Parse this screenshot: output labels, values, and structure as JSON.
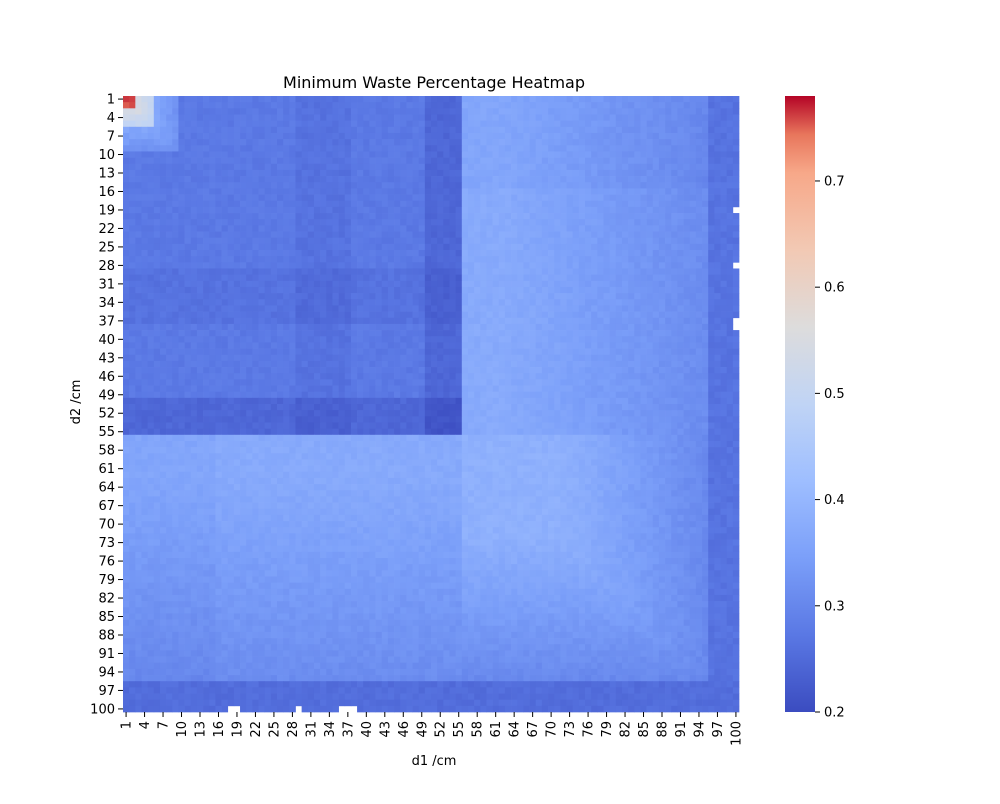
{
  "chart_data": {
    "type": "heatmap",
    "title": "Minimum Waste Percentage Heatmap",
    "xlabel": "d1 /cm",
    "ylabel": "d2 /cm",
    "x_range": [
      1,
      100
    ],
    "y_range": [
      1,
      100
    ],
    "x_tick_labels": [
      "1",
      "4",
      "7",
      "10",
      "13",
      "16",
      "19",
      "22",
      "25",
      "28",
      "31",
      "34",
      "37",
      "40",
      "43",
      "46",
      "49",
      "52",
      "55",
      "58",
      "61",
      "64",
      "67",
      "70",
      "73",
      "76",
      "79",
      "82",
      "85",
      "88",
      "91",
      "94",
      "97",
      "100"
    ],
    "y_tick_labels": [
      "1",
      "4",
      "7",
      "10",
      "13",
      "16",
      "19",
      "22",
      "25",
      "28",
      "31",
      "34",
      "37",
      "40",
      "43",
      "46",
      "49",
      "52",
      "55",
      "58",
      "61",
      "64",
      "67",
      "70",
      "73",
      "76",
      "79",
      "82",
      "85",
      "88",
      "91",
      "94",
      "97",
      "100"
    ],
    "colormap": "coolwarm",
    "colorbar": {
      "min": 0.2,
      "max": 0.78,
      "ticks": [
        "0.2",
        "0.3",
        "0.4",
        "0.5",
        "0.6",
        "0.7"
      ]
    },
    "grid": false,
    "legend": "colorbar-right",
    "missing_cells_d1_d2": [
      [
        18,
        100
      ],
      [
        19,
        100
      ],
      [
        29,
        100
      ],
      [
        36,
        100
      ],
      [
        37,
        100
      ],
      [
        38,
        100
      ],
      [
        100,
        19
      ],
      [
        100,
        28
      ],
      [
        100,
        37
      ],
      [
        100,
        38
      ]
    ],
    "approx_values": [
      {
        "region": "d1 1-2, d2 1-2",
        "value": 0.75
      },
      {
        "region": "d1 1-6, d2 1-6",
        "value": 0.55
      },
      {
        "region": "d1 1-55, d2 1-55",
        "value": 0.27
      },
      {
        "region": "d1 55-100, d2 1-55",
        "value": 0.37
      },
      {
        "region": "d1 1-55, d2 55-100",
        "value": 0.36
      },
      {
        "region": "d1 55-100, d2 55-100",
        "value": 0.38
      },
      {
        "region": "d1 96-100, any d2",
        "value": 0.26
      },
      {
        "region": "any d1, d2 96-100",
        "value": 0.25
      },
      {
        "region": "d1 ~52, d2 1-55",
        "value": 0.23
      },
      {
        "region": "d1 1-55, d2 ~52",
        "value": 0.23
      }
    ]
  }
}
